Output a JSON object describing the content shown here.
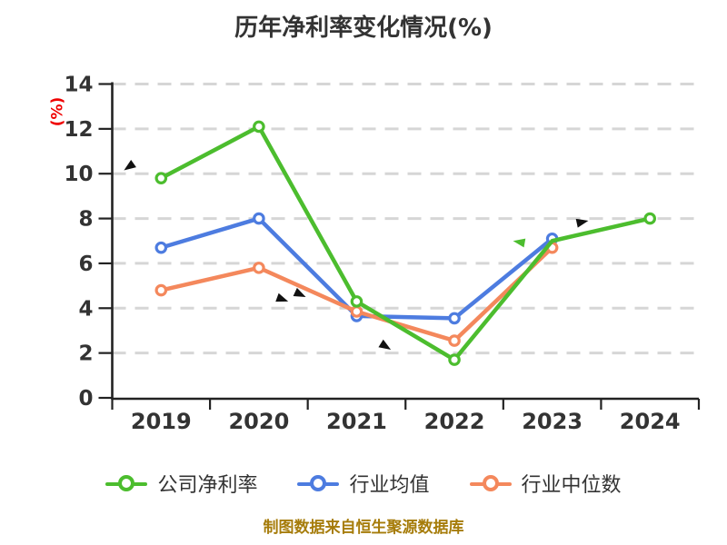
{
  "title": "历年净利率变化情况(%)",
  "caption": "制图数据来自恒生聚源数据库",
  "colors": {
    "background": "#ffffff",
    "grid": "#d6d6d6",
    "axis": "#222222",
    "tick_text": "#333333",
    "ylabel_text": "#ef0000",
    "caption_text": "#a67c0a",
    "series_green": "#4cbd2e",
    "series_blue": "#4d7ce0",
    "series_orange": "#f4885c",
    "annotation_black": "#111111"
  },
  "chart_data": {
    "type": "line",
    "title": "历年净利率变化情况(%)",
    "ylabel": "(%)",
    "xlabel": "",
    "categories": [
      "2019",
      "2020",
      "2021",
      "2022",
      "2023",
      "2024"
    ],
    "series": [
      {
        "name": "公司净利率",
        "color": "#4cbd2e",
        "values": [
          9.8,
          12.1,
          4.3,
          1.7,
          7.0,
          8.0
        ],
        "hidden_marker_indices": [
          4
        ]
      },
      {
        "name": "行业均值",
        "color": "#4d7ce0",
        "values": [
          6.7,
          8.0,
          3.65,
          3.55,
          7.1,
          null
        ],
        "hidden_marker_indices": []
      },
      {
        "name": "行业中位数",
        "color": "#f4885c",
        "values": [
          4.8,
          5.8,
          3.85,
          2.55,
          6.7,
          null
        ],
        "hidden_marker_indices": []
      }
    ],
    "draw_order": [
      1,
      2,
      0
    ],
    "ylim": [
      0,
      14
    ],
    "yticks": [
      0,
      2,
      4,
      6,
      8,
      10,
      12,
      14
    ],
    "grid": "horizontal-dashed",
    "legend_position": "bottom",
    "annotations": [
      {
        "type": "arrow",
        "x": 0.12,
        "y": 10.15,
        "angle": 145,
        "color": "#111111"
      },
      {
        "type": "arrow",
        "x": 1.8,
        "y": 4.3,
        "angle": 20,
        "color": "#111111"
      },
      {
        "type": "arrow",
        "x": 1.98,
        "y": 4.5,
        "angle": 25,
        "color": "#111111"
      },
      {
        "type": "arrow",
        "x": 2.85,
        "y": 2.15,
        "angle": 32,
        "color": "#111111"
      },
      {
        "type": "arrow",
        "x": 4.1,
        "y": 7.0,
        "angle": 190,
        "color": "#4cbd2e"
      },
      {
        "type": "arrow",
        "x": 4.87,
        "y": 7.9,
        "angle": -12,
        "color": "#111111"
      }
    ]
  }
}
